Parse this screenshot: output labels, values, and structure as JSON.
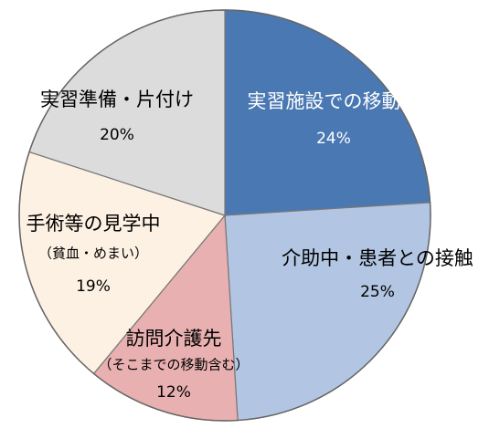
{
  "chart_data": {
    "type": "pie",
    "title": "",
    "slices": [
      {
        "name_lines": [
          "実習施設での移動中"
        ],
        "value": 24,
        "value_label": "24%",
        "color": "#4a78b2",
        "text_color": "#ffffff"
      },
      {
        "name_lines": [
          "介助中・患者との接触"
        ],
        "value": 25,
        "value_label": "25%",
        "color": "#b2c6e3",
        "text_color": "#000000"
      },
      {
        "name_lines": [
          "訪問介護先",
          "（そこまでの移動含む）"
        ],
        "value": 12,
        "value_label": "12%",
        "color": "#e8b0b0",
        "text_color": "#000000"
      },
      {
        "name_lines": [
          "手術等の見学中",
          "（貧血・めまい）"
        ],
        "value": 19,
        "value_label": "19%",
        "color": "#fdf1e3",
        "text_color": "#000000"
      },
      {
        "name_lines": [
          "実習準備・片付け"
        ],
        "value": 20,
        "value_label": "20%",
        "color": "#dcdcdc",
        "text_color": "#000000"
      }
    ],
    "start_direction": "top",
    "clockwise": true,
    "legend": "none"
  }
}
